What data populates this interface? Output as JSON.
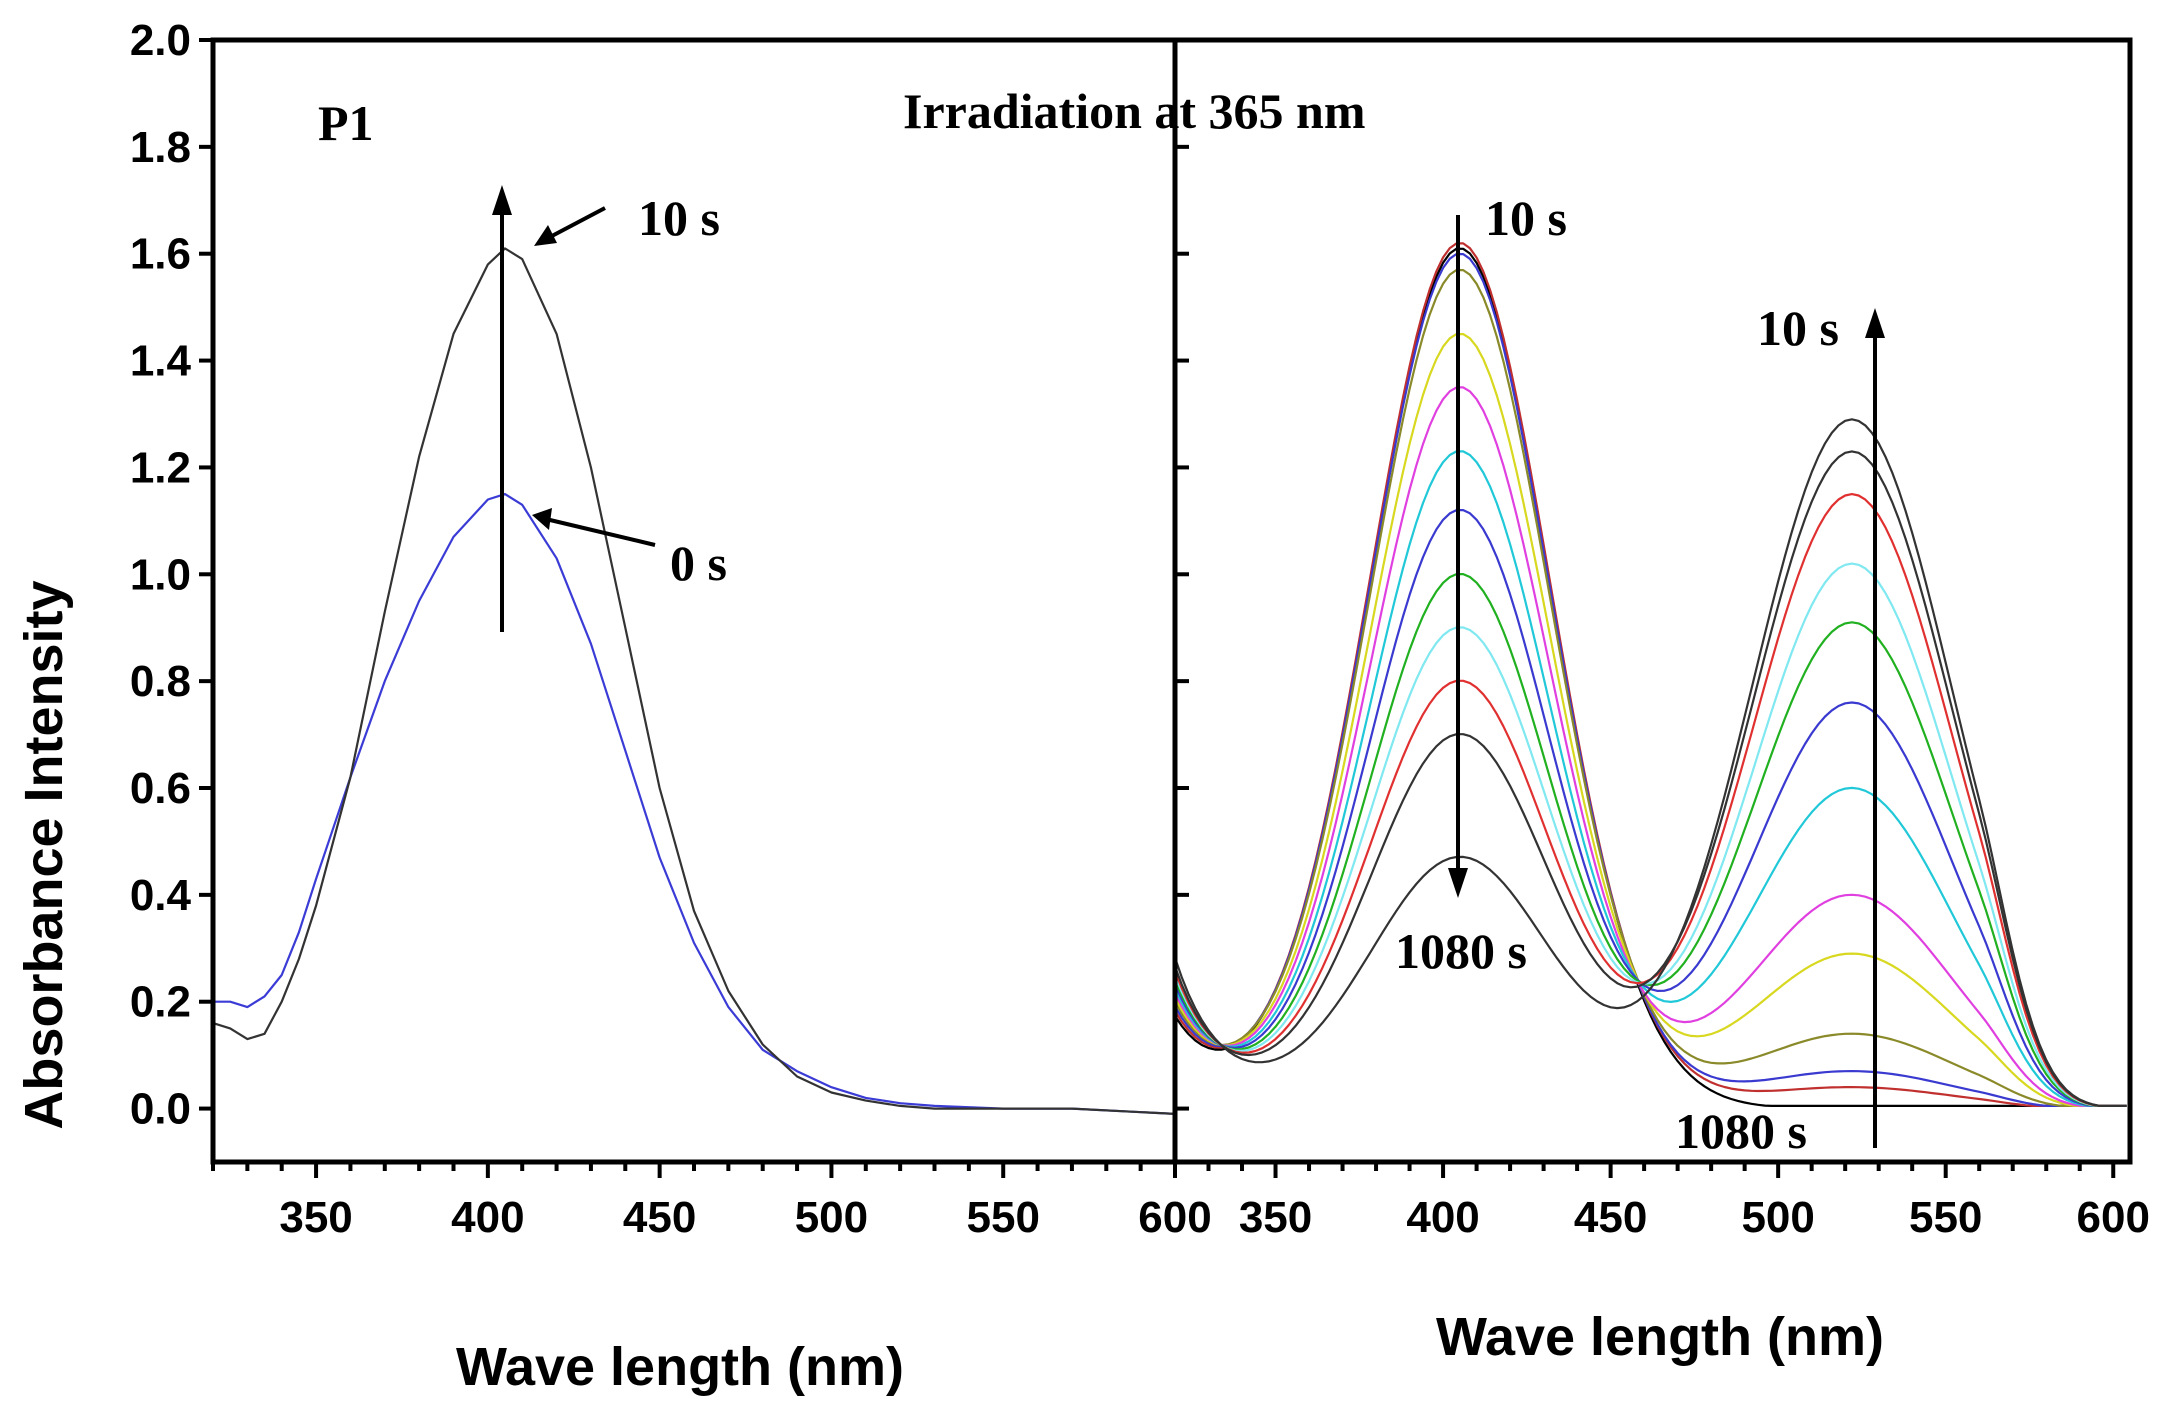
{
  "chart_data": [
    {
      "type": "line",
      "panel": "left",
      "ylabel": "Absorbance  Intensity",
      "xlabel": "Wave length (nm)",
      "xlim": [
        320,
        600
      ],
      "ylim": [
        -0.1,
        2.0
      ],
      "xticks": [
        "350",
        "400",
        "450",
        "500",
        "550",
        "600"
      ],
      "yticks": [
        "0.0",
        "0.2",
        "0.4",
        "0.6",
        "0.8",
        "1.0",
        "1.2",
        "1.4",
        "1.6",
        "1.8",
        "2.0"
      ],
      "annotations": {
        "label": "P1",
        "top": "10 s",
        "bottom": "0 s"
      },
      "series": [
        {
          "name": "0 s",
          "color": "#3b3bd6",
          "x": [
            320,
            325,
            330,
            335,
            340,
            345,
            350,
            360,
            370,
            380,
            390,
            400,
            405,
            410,
            420,
            430,
            440,
            450,
            460,
            470,
            480,
            490,
            500,
            510,
            520,
            530,
            550,
            570,
            600
          ],
          "y": [
            0.2,
            0.2,
            0.19,
            0.21,
            0.25,
            0.33,
            0.43,
            0.62,
            0.8,
            0.95,
            1.07,
            1.14,
            1.15,
            1.13,
            1.03,
            0.87,
            0.67,
            0.47,
            0.31,
            0.19,
            0.11,
            0.07,
            0.04,
            0.02,
            0.01,
            0.005,
            0.0,
            0.0,
            -0.01
          ]
        },
        {
          "name": "10 s",
          "color": "#333333",
          "x": [
            320,
            325,
            330,
            335,
            340,
            345,
            350,
            360,
            370,
            380,
            390,
            400,
            405,
            410,
            420,
            430,
            440,
            450,
            460,
            470,
            480,
            490,
            500,
            510,
            520,
            530,
            550,
            570,
            600
          ],
          "y": [
            0.16,
            0.15,
            0.13,
            0.14,
            0.2,
            0.28,
            0.38,
            0.62,
            0.93,
            1.22,
            1.45,
            1.58,
            1.61,
            1.59,
            1.45,
            1.2,
            0.9,
            0.6,
            0.37,
            0.22,
            0.12,
            0.06,
            0.03,
            0.015,
            0.005,
            0.0,
            0.0,
            0.0,
            -0.01
          ]
        }
      ]
    },
    {
      "type": "line",
      "panel": "right",
      "title": "Irradiation at 365 nm",
      "xlabel": "Wave length (nm)",
      "xlim": [
        320,
        605
      ],
      "ylim": [
        -0.1,
        2.0
      ],
      "xticks": [
        "350",
        "400",
        "450",
        "500",
        "550",
        "600"
      ],
      "annotations": {
        "top_left": "10 s",
        "bottom_left": "1080 s",
        "top_right": "10 s",
        "bottom_right": "1080 s"
      },
      "series": [
        {
          "name": "s1",
          "color": "#000000",
          "peak1": 1.61,
          "peak2": 0.0,
          "base": 0.18
        },
        {
          "name": "s2",
          "color": "#c0302f",
          "peak1": 1.62,
          "peak2": 0.04,
          "base": 0.19
        },
        {
          "name": "s3",
          "color": "#3a3ad0",
          "peak1": 1.6,
          "peak2": 0.07,
          "base": 0.2
        },
        {
          "name": "s4",
          "color": "#8a8a2a",
          "peak1": 1.57,
          "peak2": 0.14,
          "base": 0.21
        },
        {
          "name": "s5",
          "color": "#d8d820",
          "peak1": 1.45,
          "peak2": 0.29,
          "base": 0.22
        },
        {
          "name": "s6",
          "color": "#e040e0",
          "peak1": 1.35,
          "peak2": 0.4,
          "base": 0.23
        },
        {
          "name": "s7",
          "color": "#20c8d8",
          "peak1": 1.23,
          "peak2": 0.6,
          "base": 0.24
        },
        {
          "name": "s8",
          "color": "#3a3ad0",
          "peak1": 1.12,
          "peak2": 0.76,
          "base": 0.25
        },
        {
          "name": "s9",
          "color": "#20b020",
          "peak1": 1.0,
          "peak2": 0.91,
          "base": 0.26
        },
        {
          "name": "s10",
          "color": "#80e8f0",
          "peak1": 0.9,
          "peak2": 1.02,
          "base": 0.27
        },
        {
          "name": "s11",
          "color": "#e03030",
          "peak1": 0.8,
          "peak2": 1.15,
          "base": 0.28
        },
        {
          "name": "s12",
          "color": "#333333",
          "peak1": 0.7,
          "peak2": 1.23,
          "base": 0.29
        },
        {
          "name": "s13",
          "color": "#333333",
          "peak1": 0.47,
          "peak2": 1.29,
          "base": 0.31
        }
      ]
    }
  ]
}
